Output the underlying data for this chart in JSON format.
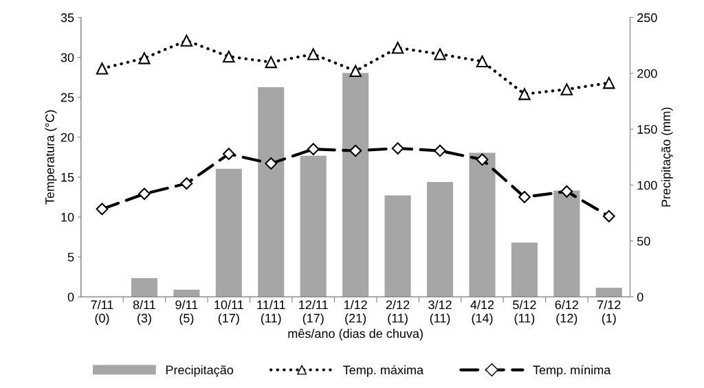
{
  "chart_data": {
    "type": "bar",
    "xlabel": "mês/ano (dias de chuva)",
    "ylabel": "Temperatura (°C)",
    "y2label": "Precipitação (mm)",
    "categories": [
      "7/11\n(0)",
      "8/11\n(3)",
      "9/11\n(5)",
      "10/11\n(17)",
      "11/11\n(11)",
      "12/11\n(17)",
      "1/12\n(21)",
      "2/12\n(11)",
      "3/12\n(11)",
      "4/12\n(14)",
      "5/12\n(11)",
      "6/12\n(12)",
      "7/12\n(1)"
    ],
    "series": [
      {
        "name": "Precipitação",
        "type": "bar",
        "axis": "y2",
        "color": "#a6a6a6",
        "values": [
          0,
          16.8,
          6.5,
          114.6,
          187.6,
          126.2,
          200.3,
          90.8,
          102.7,
          128.9,
          48.5,
          95.1,
          8.2
        ]
      },
      {
        "name": "Temp. máxima",
        "type": "line",
        "color": "#000000",
        "marker": "triangle",
        "line_style": "dotted",
        "values": [
          28.6,
          29.9,
          32.1,
          30.1,
          29.4,
          30.4,
          28.3,
          31.2,
          30.4,
          29.5,
          25.4,
          26.0,
          26.8
        ]
      },
      {
        "name": "Temp. mínima",
        "type": "line",
        "color": "#000000",
        "marker": "diamond",
        "line_style": "dashed",
        "values": [
          11.0,
          12.9,
          14.2,
          17.9,
          16.7,
          18.5,
          18.3,
          18.6,
          18.3,
          17.2,
          12.5,
          13.2,
          10.1
        ]
      }
    ],
    "ylim": [
      0,
      35
    ],
    "yticks": [
      0,
      5,
      10,
      15,
      20,
      25,
      30,
      35
    ],
    "y2lim": [
      0,
      250
    ],
    "y2ticks": [
      0,
      50,
      100,
      150,
      200,
      250
    ],
    "grid": false,
    "legend": "bottom"
  }
}
